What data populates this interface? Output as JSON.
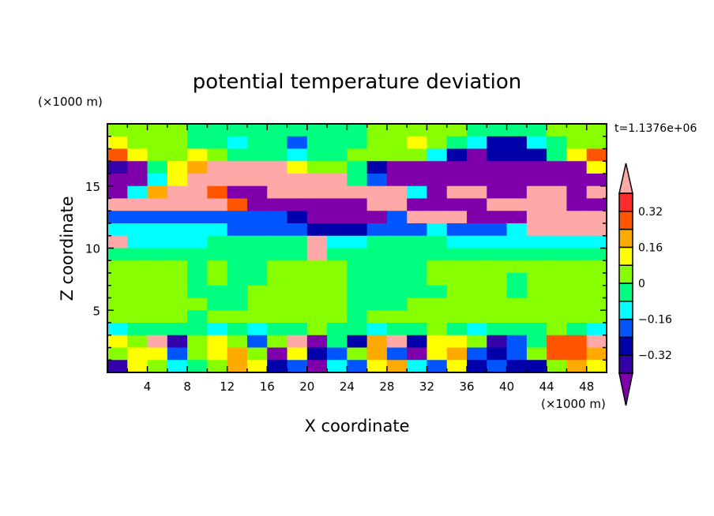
{
  "chart_data": {
    "type": "heatmap",
    "title": "potential temperature deviation",
    "xlabel": "X coordinate",
    "ylabel": "Z coordinate",
    "x_unit_label": "(×1000 m)",
    "y_unit_label": "(×1000 m)",
    "time_label": "t=1.1376e+06",
    "xlim": [
      0,
      50
    ],
    "ylim": [
      0,
      20
    ],
    "x_ticks": [
      4,
      8,
      12,
      16,
      20,
      24,
      28,
      32,
      36,
      40,
      44,
      48
    ],
    "y_ticks": [
      5,
      10,
      15
    ],
    "grid": false,
    "colorbar": {
      "levels": [
        -0.4,
        -0.32,
        -0.24,
        -0.16,
        -0.08,
        0,
        0.08,
        0.16,
        0.24,
        0.32,
        0.4
      ],
      "labels": [
        "0.32",
        "0.16",
        "0",
        "−0.16",
        "−0.32"
      ],
      "label_values": [
        0.32,
        0.16,
        0,
        -0.16,
        -0.32
      ],
      "colors_low_to_high": [
        "#7f00aa",
        "#3300aa",
        "#0000aa",
        "#0055ff",
        "#00ffff",
        "#00ff80",
        "#88ff00",
        "#ffff00",
        "#ffaa00",
        "#ff5500",
        "#ff2a2a",
        "#ffa8a8"
      ],
      "placement": "right"
    },
    "bin_codes": {
      "P": -0.44,
      "V": -0.36,
      "D": -0.28,
      "B": -0.2,
      "C": -0.12,
      "G": -0.04,
      "L": 0.04,
      "Y": 0.12,
      "O": 0.2,
      "R": 0.28,
      "E": 0.36,
      "K": 0.44
    },
    "grid_dx": 2,
    "grid_dz": 1,
    "rows_top_to_bottom": [
      "LLLLGGGGGGGGGLLLLLGGGGLLL",
      "YLLLGGCGGBGGGLLYLGCDDCGLL",
      "RYLLYLGGGCGGLLLLCDPDDDGYR",
      "VPGYOKKKKYLLGDPPPPPPPPPPY",
      "PPCYKKKKKKKKGBPPPPPPPPPPP",
      "PCOKKRPPKKKKKKKCPKKPPKKPK",
      "KKKKKKRPPPPPPKKPPPPKKKKPP",
      "BBBBBBBBBDPPPPBKKKPPPKKKK",
      "CCCCCCBBBBDDDBBBCBBBCKKKK",
      "KCCCCGGGGGKCCGGGGCCCCCCCC",
      "GGGGGGGGGGKGGGGGGGGGGGGGG",
      "LLLLGLGGLLLLGGGGLLLLLLLLL",
      "LLLLGLGGLLLLGGGGLLLLGLLLL",
      "LLLLGGGLLLLLGGGGGLLLGLLLL",
      "LLLLLGGLLLLLGGGLLLLLLLLLL",
      "LLLLGLLLLLLLGLLLLLLLLLLLL",
      "CGGGGCGCGGLGGCGGLGCGGGLGC",
      "YLKVLYLBLKPGDOKDYYLVBGRRK",
      "LYYBLYOLPYDBLOBPYOBDBLRRO",
      "VYLCGLOYDBPCBYOCBYDBDDLOY"
    ]
  }
}
